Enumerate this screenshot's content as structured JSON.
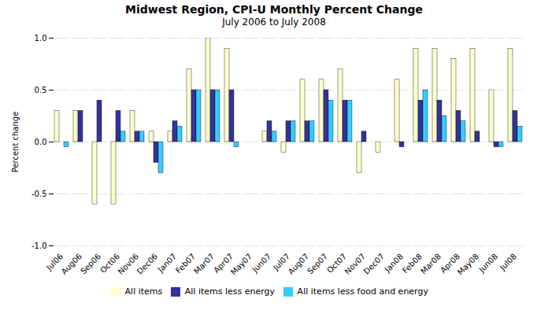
{
  "chart_data": {
    "type": "bar",
    "title": "Midwest Region, CPI-U Monthly Percent Change",
    "subtitle": "July 2006 to July 2008",
    "categories": [
      "Jul06",
      "Aug06",
      "Sep06",
      "Oct06",
      "Nov06",
      "Dec06",
      "Jan07",
      "Feb07",
      "Mar07",
      "Apr07",
      "May07",
      "Jun07",
      "Jul07",
      "Aug07",
      "Sep07",
      "Oct07",
      "Nov07",
      "Dec07",
      "Jan08",
      "Feb08",
      "Mar08",
      "Apr08",
      "May08",
      "Jun08",
      "Jul08"
    ],
    "series": [
      {
        "name": "All items",
        "color": "#FFFFCC",
        "values": [
          0.3,
          0.3,
          -0.6,
          -0.6,
          0.3,
          0.1,
          0.1,
          0.7,
          1.0,
          0.9,
          0.0,
          0.1,
          -0.1,
          0.6,
          0.6,
          0.7,
          -0.3,
          -0.1,
          0.6,
          0.9,
          0.9,
          0.8,
          0.9,
          0.5,
          0.9
        ]
      },
      {
        "name": "All items less energy",
        "color": "#333399",
        "values": [
          0.0,
          0.3,
          0.4,
          0.3,
          0.1,
          -0.2,
          0.2,
          0.5,
          0.5,
          0.5,
          0.0,
          0.2,
          0.2,
          0.2,
          0.5,
          0.4,
          0.1,
          0.0,
          -0.05,
          0.4,
          0.4,
          0.3,
          0.1,
          -0.05,
          0.3
        ]
      },
      {
        "name": "All items less food and energy",
        "color": "#33CCFF",
        "values": [
          -0.05,
          0.0,
          0.0,
          0.1,
          0.1,
          -0.3,
          0.15,
          0.5,
          0.5,
          -0.05,
          0.0,
          0.1,
          0.2,
          0.2,
          0.4,
          0.4,
          0.0,
          0.0,
          0.0,
          0.5,
          0.25,
          0.2,
          0.0,
          -0.05,
          0.15
        ]
      }
    ],
    "ylabel": "Percent change",
    "ylim": [
      -1.0,
      1.0
    ],
    "yticks": [
      {
        "value": -1.0,
        "label": "-1.0"
      },
      -0.5,
      {
        "value": 0.0,
        "label": "0.0"
      },
      0.5,
      {
        "value": 1.0,
        "label": "1.0"
      }
    ],
    "grid": true,
    "legend": "bottom"
  }
}
